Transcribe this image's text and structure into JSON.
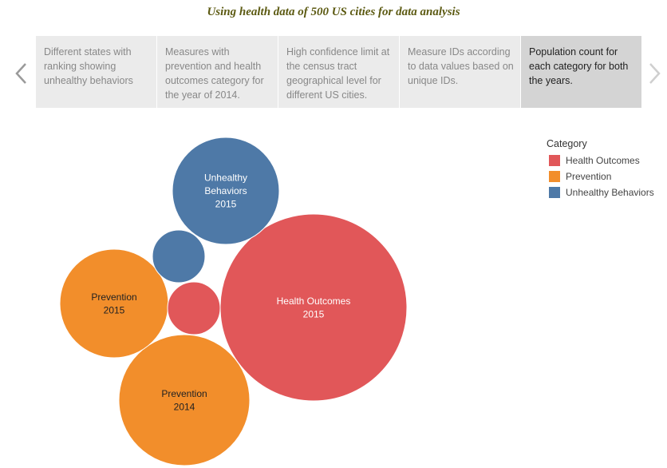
{
  "title": "Using health data of 500 US cities for data analysis",
  "nav": {
    "prev_icon": "chevron-left-icon",
    "next_icon": "chevron-right-icon"
  },
  "story_points": [
    {
      "text": "Different states with ranking showing unhealthy behaviors",
      "active": false
    },
    {
      "text": "Measures with prevention and health outcomes category for the year of 2014.",
      "active": false
    },
    {
      "text": "High confidence limit at the census tract geographical level for different US cities.",
      "active": false
    },
    {
      "text": "Measure IDs according to data values based on unique IDs.",
      "active": false
    },
    {
      "text": "Population count for each category for both the years.",
      "active": true
    }
  ],
  "legend": {
    "title": "Category",
    "items": [
      {
        "label": "Health Outcomes",
        "color": "#e15759"
      },
      {
        "label": "Prevention",
        "color": "#f28e2b"
      },
      {
        "label": "Unhealthy Behaviors",
        "color": "#4e79a7"
      }
    ]
  },
  "chart_data": {
    "type": "bubble",
    "bubbles": [
      {
        "category": "Health Outcomes",
        "year": "2015",
        "label": [
          "Health Outcomes",
          "2015"
        ],
        "size": 100
      },
      {
        "category": "Prevention",
        "year": "2014",
        "label": [
          "Prevention",
          "2014"
        ],
        "size": 49
      },
      {
        "category": "Prevention",
        "year": "2015",
        "label": [
          "Prevention",
          "2015"
        ],
        "size": 40
      },
      {
        "category": "Unhealthy Behaviors",
        "year": "2015",
        "label": [
          "Unhealthy",
          "Behaviors",
          "2015"
        ],
        "size": 33
      },
      {
        "category": "Unhealthy Behaviors",
        "year": "2014",
        "label": [],
        "size": 8
      },
      {
        "category": "Health Outcomes",
        "year": "2014",
        "label": [],
        "size": 8
      }
    ]
  }
}
